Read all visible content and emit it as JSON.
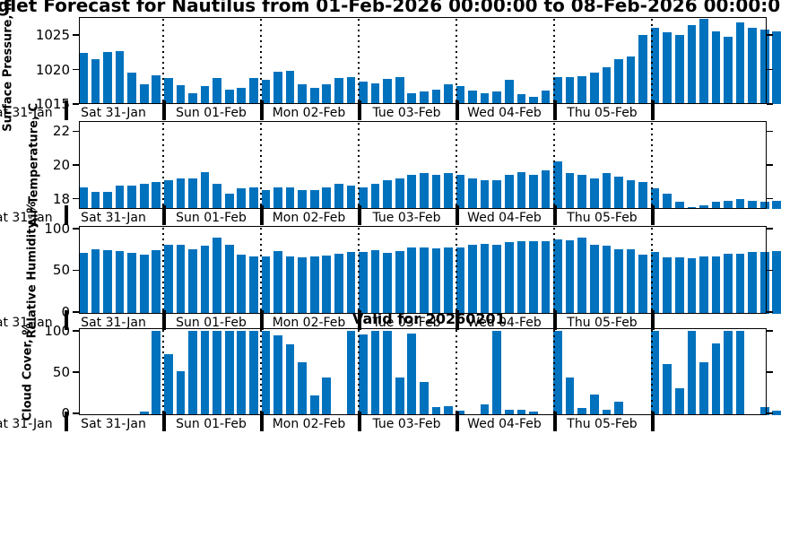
{
  "title": "glet Forecast for Nautilus from 01-Feb-2026 00:00:00 to 08-Feb-2026 00:00:0",
  "annotation": "Valid for 20260201",
  "day_labels": [
    "Sat 31-Jan",
    "Sun 01-Feb",
    "Mon 02-Feb",
    "Tue 03-Feb",
    "Wed 04-Feb",
    "Thu 05-Feb"
  ],
  "clipped_left_label": "Sat 31-Jan",
  "bar_color": "#0072BD",
  "axis_color": "#000000",
  "background_color": "#ffffff",
  "chart_data": [
    {
      "type": "bar",
      "ylabel": "Surface Pressure, mb",
      "yticks": [
        1015,
        1020,
        1025
      ],
      "ylim": [
        1015,
        1027.6
      ],
      "categories": [
        "Sat 31-Jan",
        "Sun 01-Feb",
        "Mon 02-Feb",
        "Tue 03-Feb",
        "Wed 04-Feb",
        "Thu 05-Feb"
      ],
      "grid": "dotted vertical lines at day boundaries",
      "values": [
        1022.4,
        1021.5,
        1022.5,
        1022.6,
        1019.5,
        1017.9,
        1019.2,
        1018.8,
        1017.7,
        1016.5,
        1017.6,
        1018.8,
        1017.1,
        1017.4,
        1018.8,
        1018.5,
        1019.7,
        1019.8,
        1017.9,
        1017.4,
        1017.9,
        1018.8,
        1018.9,
        1018.2,
        1018.0,
        1018.6,
        1018.9,
        1016.6,
        1016.8,
        1017.1,
        1017.9,
        1017.6,
        1016.9,
        1016.6,
        1016.8,
        1018.5,
        1016.4,
        1016.1,
        1016.9,
        1018.9,
        1018.9,
        1019.0,
        1019.5,
        1020.3,
        1021.5,
        1021.9,
        1025.0,
        1026.0,
        1025.4,
        1025.0,
        1026.4,
        1027.3,
        1025.5,
        1024.7,
        1026.8,
        1026.0,
        1025.8,
        1025.5
      ]
    },
    {
      "type": "bar",
      "ylabel": "Air Temperature, C",
      "yticks": [
        18,
        20,
        22
      ],
      "ylim": [
        17.4,
        22.6
      ],
      "categories": [
        "Sat 31-Jan",
        "Sun 01-Feb",
        "Mon 02-Feb",
        "Tue 03-Feb",
        "Wed 04-Feb",
        "Thu 05-Feb"
      ],
      "grid": "dotted vertical lines at day boundaries",
      "values": [
        18.7,
        18.4,
        18.4,
        18.8,
        18.8,
        18.9,
        19.0,
        19.1,
        19.2,
        19.2,
        19.6,
        18.9,
        18.3,
        18.6,
        18.7,
        18.5,
        18.7,
        18.7,
        18.5,
        18.5,
        18.7,
        18.9,
        18.8,
        18.7,
        18.9,
        19.1,
        19.2,
        19.4,
        19.5,
        19.4,
        19.5,
        19.4,
        19.2,
        19.1,
        19.1,
        19.4,
        19.6,
        19.4,
        19.7,
        20.2,
        19.5,
        19.4,
        19.2,
        19.5,
        19.3,
        19.1,
        19.0,
        18.6,
        18.3,
        17.8,
        17.5,
        17.6,
        17.8,
        17.9,
        18.0,
        17.9,
        17.8,
        17.9
      ]
    },
    {
      "type": "bar",
      "ylabel": "Relative Humidity, %",
      "yticks": [
        0,
        50,
        100
      ],
      "ylim": [
        0,
        100
      ],
      "categories": [
        "Sat 31-Jan",
        "Sun 01-Feb",
        "Mon 02-Feb",
        "Tue 03-Feb",
        "Wed 04-Feb",
        "Thu 05-Feb"
      ],
      "grid": "dotted vertical lines at day boundaries",
      "values": [
        71,
        75,
        74,
        73,
        71,
        69,
        74,
        80,
        80,
        75,
        79,
        89,
        80,
        69,
        67,
        67,
        73,
        67,
        66,
        67,
        68,
        70,
        72,
        72,
        74,
        71,
        73,
        77,
        77,
        76,
        77,
        77,
        81,
        82,
        81,
        84,
        85,
        85,
        85,
        87,
        86,
        89,
        80,
        79,
        75,
        75,
        69,
        72,
        66,
        65,
        64,
        67,
        67,
        70,
        70,
        72,
        72,
        73
      ]
    },
    {
      "type": "bar",
      "ylabel": "Cloud Cover, %",
      "yticks": [
        0,
        50,
        100
      ],
      "ylim": [
        0,
        100
      ],
      "categories": [
        "Sat 31-Jan",
        "Sun 01-Feb",
        "Mon 02-Feb",
        "Tue 03-Feb",
        "Wed 04-Feb",
        "Thu 05-Feb"
      ],
      "grid": "dotted vertical lines at day boundaries",
      "values": [
        0,
        0,
        0,
        0,
        0,
        2,
        100,
        72,
        51,
        100,
        100,
        100,
        100,
        100,
        100,
        100,
        94,
        84,
        62,
        22,
        44,
        0,
        100,
        95,
        100,
        100,
        43,
        97,
        38,
        8,
        9,
        3,
        0,
        11,
        100,
        4,
        4,
        2,
        0,
        100,
        43,
        7,
        23,
        5,
        14,
        0,
        0,
        100,
        60,
        30,
        100,
        62,
        85,
        100,
        100,
        0,
        8,
        3
      ]
    }
  ]
}
